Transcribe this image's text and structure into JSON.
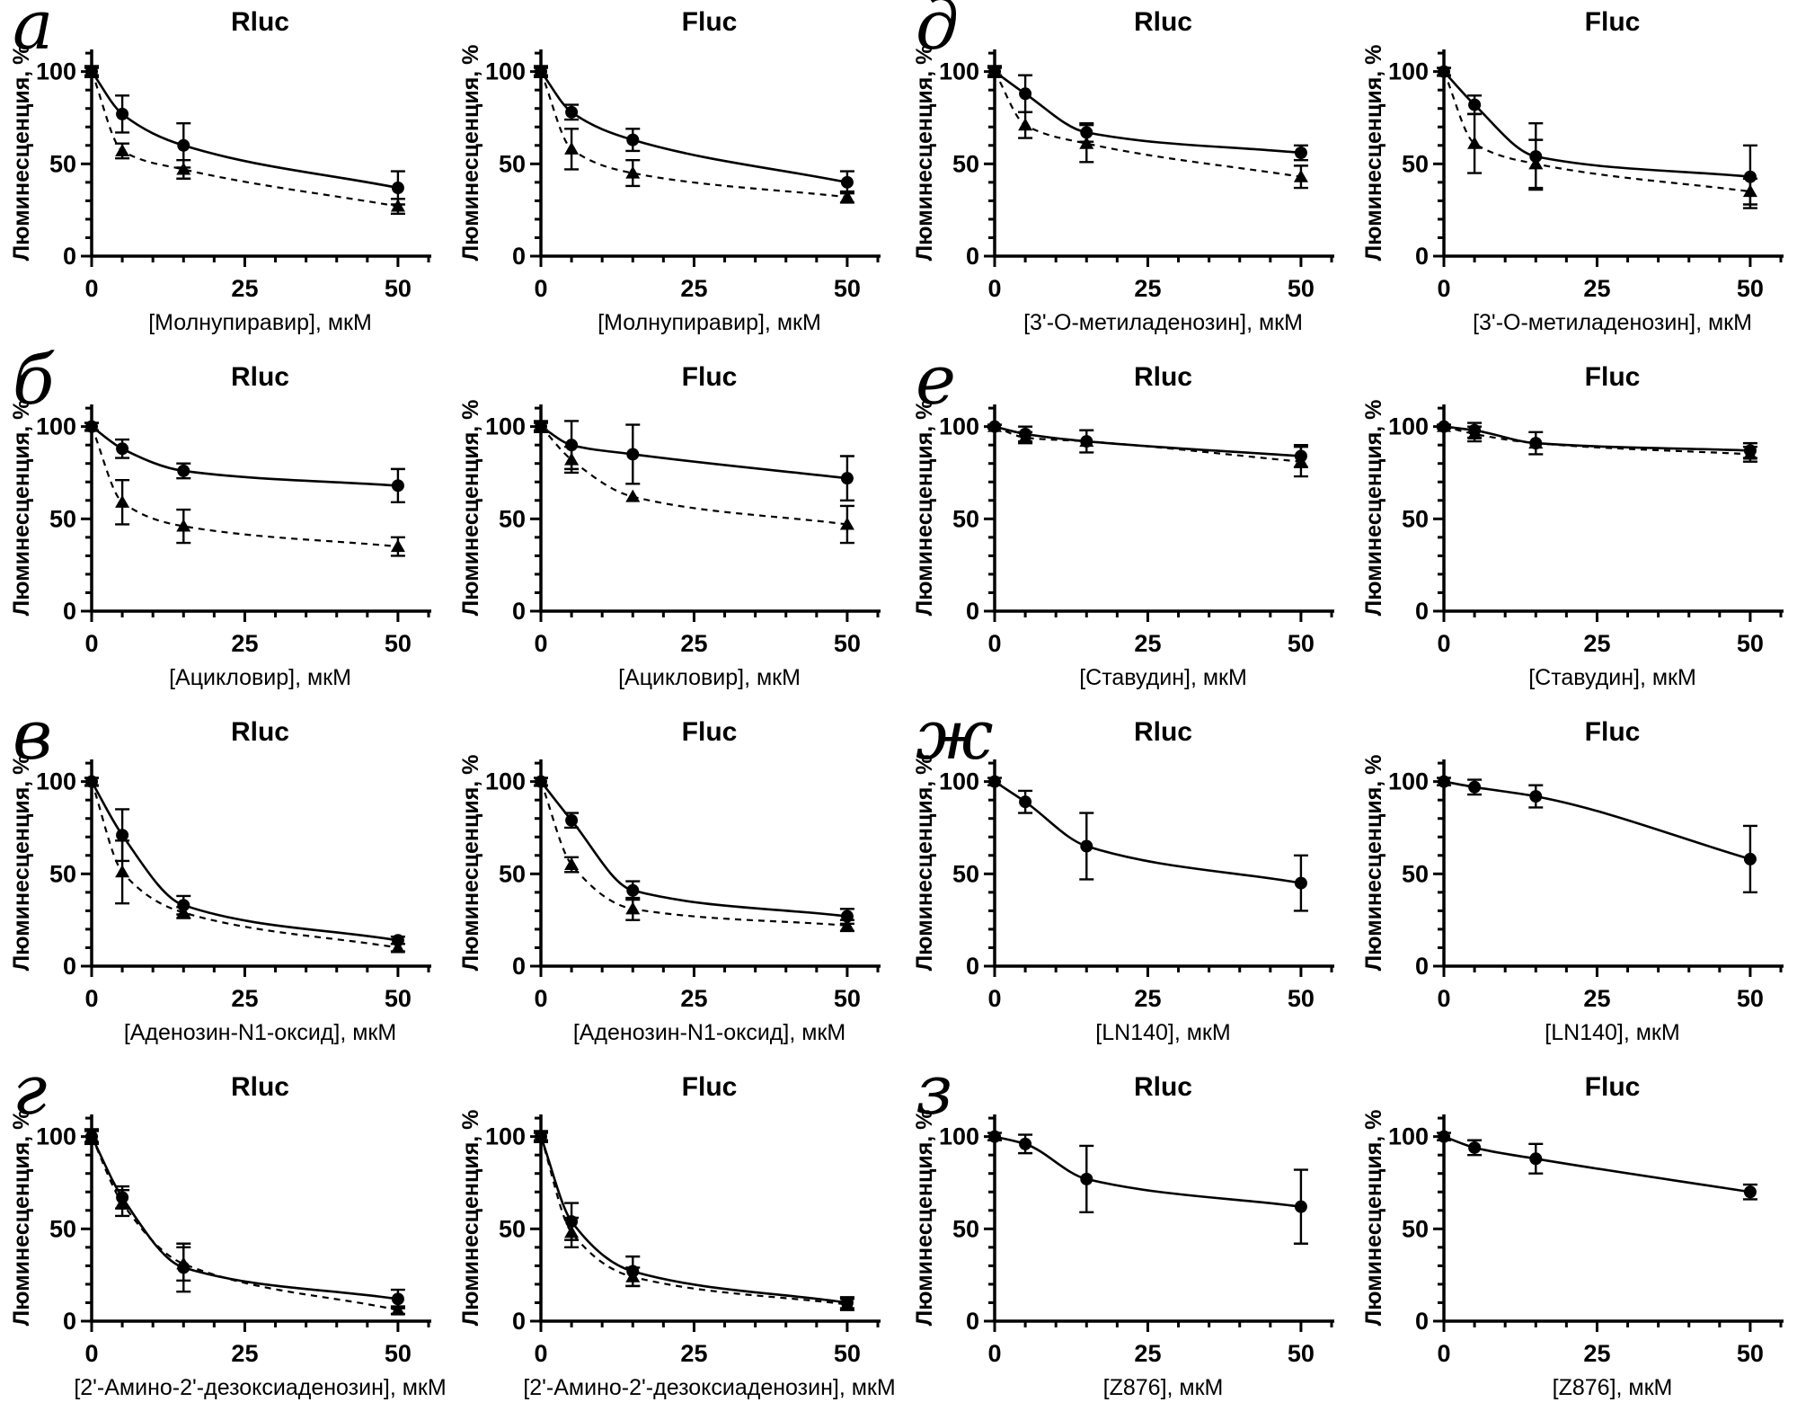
{
  "figure": {
    "background": "#ffffff",
    "foreground": "#000000",
    "description": "Dose-response luminescence curves, 8 panels each with Rluc and Fluc charts"
  },
  "axes": {
    "ylabel": "Люминесценция, %",
    "y_ticks": [
      0,
      50,
      100
    ],
    "y_minor_step": 10,
    "x_ticks": [
      0,
      25,
      50
    ],
    "x_minor_step": 5,
    "xlim": [
      0,
      55
    ],
    "ylim": [
      0,
      112
    ],
    "grid": false,
    "legend": "none"
  },
  "chart_data": [
    {
      "label": "а",
      "xlabel": "[Молнупиравир], мкМ",
      "type": "scatter-line",
      "charts": [
        {
          "title": "Rluc",
          "series": [
            {
              "name": "circles-solid",
              "marker": "circle",
              "line": "solid",
              "x": [
                0,
                5,
                15,
                50
              ],
              "y": [
                100,
                77,
                60,
                37
              ],
              "err": [
                3,
                10,
                12,
                9
              ]
            },
            {
              "name": "triangles-dashed",
              "marker": "triangle",
              "line": "dashed",
              "x": [
                0,
                5,
                15,
                50
              ],
              "y": [
                100,
                57,
                47,
                27
              ],
              "err": [
                2,
                4,
                5,
                4
              ]
            }
          ]
        },
        {
          "title": "Fluc",
          "series": [
            {
              "name": "circles-solid",
              "marker": "circle",
              "line": "solid",
              "x": [
                0,
                5,
                15,
                50
              ],
              "y": [
                100,
                78,
                63,
                40
              ],
              "err": [
                3,
                4,
                6,
                6
              ]
            },
            {
              "name": "triangles-dashed",
              "marker": "triangle",
              "line": "dashed",
              "x": [
                0,
                5,
                15,
                50
              ],
              "y": [
                100,
                58,
                45,
                32
              ],
              "err": [
                2,
                11,
                7,
                3
              ]
            }
          ]
        }
      ]
    },
    {
      "label": "б",
      "xlabel": "[Ацикловир], мкМ",
      "type": "scatter-line",
      "charts": [
        {
          "title": "Rluc",
          "series": [
            {
              "name": "circles-solid",
              "marker": "circle",
              "line": "solid",
              "x": [
                0,
                5,
                15,
                50
              ],
              "y": [
                100,
                88,
                76,
                68
              ],
              "err": [
                2,
                5,
                4,
                9
              ]
            },
            {
              "name": "triangles-dashed",
              "marker": "triangle",
              "line": "dashed",
              "x": [
                0,
                5,
                15,
                50
              ],
              "y": [
                100,
                59,
                46,
                35
              ],
              "err": [
                2,
                12,
                9,
                5
              ]
            }
          ]
        },
        {
          "title": "Fluc",
          "series": [
            {
              "name": "circles-solid",
              "marker": "circle",
              "line": "solid",
              "x": [
                0,
                5,
                15,
                50
              ],
              "y": [
                100,
                90,
                85,
                72
              ],
              "err": [
                3,
                13,
                16,
                12
              ]
            },
            {
              "name": "triangles-dashed",
              "marker": "triangle",
              "line": "dashed",
              "x": [
                0,
                5,
                15,
                50
              ],
              "y": [
                100,
                82,
                62,
                47
              ],
              "err": [
                2,
                7,
                0,
                10
              ]
            }
          ]
        }
      ]
    },
    {
      "label": "в",
      "xlabel": "[Аденозин-N1-оксид], мкМ",
      "type": "scatter-line",
      "charts": [
        {
          "title": "Rluc",
          "series": [
            {
              "name": "circles-solid",
              "marker": "circle",
              "line": "solid",
              "x": [
                0,
                5,
                15,
                50
              ],
              "y": [
                100,
                71,
                33,
                14
              ],
              "err": [
                2,
                14,
                5,
                2
              ]
            },
            {
              "name": "triangles-dashed",
              "marker": "triangle",
              "line": "dashed",
              "x": [
                0,
                5,
                15,
                50
              ],
              "y": [
                100,
                51,
                29,
                10
              ],
              "err": [
                2,
                17,
                3,
                2
              ]
            }
          ]
        },
        {
          "title": "Fluc",
          "series": [
            {
              "name": "circles-solid",
              "marker": "circle",
              "line": "solid",
              "x": [
                0,
                5,
                15,
                50
              ],
              "y": [
                100,
                79,
                41,
                27
              ],
              "err": [
                2,
                4,
                5,
                4
              ]
            },
            {
              "name": "triangles-dashed",
              "marker": "triangle",
              "line": "dashed",
              "x": [
                0,
                5,
                15,
                50
              ],
              "y": [
                100,
                55,
                31,
                22
              ],
              "err": [
                2,
                4,
                6,
                3
              ]
            }
          ]
        }
      ]
    },
    {
      "label": "г",
      "xlabel": "[2'-Амино-2'-дезоксиаденозин], мкМ",
      "type": "scatter-line",
      "charts": [
        {
          "title": "Rluc",
          "series": [
            {
              "name": "circles-solid",
              "marker": "circle",
              "line": "solid",
              "x": [
                0,
                5,
                15,
                50
              ],
              "y": [
                100,
                67,
                29,
                12
              ],
              "err": [
                4,
                6,
                13,
                5
              ]
            },
            {
              "name": "triangles-dashed",
              "marker": "triangle",
              "line": "dashed",
              "x": [
                0,
                5,
                15,
                50
              ],
              "y": [
                100,
                64,
                31,
                6
              ],
              "err": [
                3,
                7,
                9,
                2
              ]
            }
          ]
        },
        {
          "title": "Fluc",
          "series": [
            {
              "name": "circles-solid",
              "marker": "circle",
              "line": "solid",
              "x": [
                0,
                5,
                15,
                50
              ],
              "y": [
                100,
                54,
                27,
                10
              ],
              "err": [
                3,
                10,
                8,
                3
              ]
            },
            {
              "name": "triangles-dashed",
              "marker": "triangle",
              "line": "dashed",
              "x": [
                0,
                5,
                15,
                50
              ],
              "y": [
                100,
                48,
                24,
                9
              ],
              "err": [
                2,
                8,
                5,
                3
              ]
            }
          ]
        }
      ]
    },
    {
      "label": "д",
      "xlabel": "[3'-O-метиладенозин], мкМ",
      "type": "scatter-line",
      "charts": [
        {
          "title": "Rluc",
          "series": [
            {
              "name": "circles-solid",
              "marker": "circle",
              "line": "solid",
              "x": [
                0,
                5,
                15,
                50
              ],
              "y": [
                100,
                88,
                67,
                56
              ],
              "err": [
                3,
                10,
                5,
                4
              ]
            },
            {
              "name": "triangles-dashed",
              "marker": "triangle",
              "line": "dashed",
              "x": [
                0,
                5,
                15,
                50
              ],
              "y": [
                100,
                71,
                61,
                43
              ],
              "err": [
                2,
                7,
                10,
                6
              ]
            }
          ]
        },
        {
          "title": "Fluc",
          "series": [
            {
              "name": "circles-solid",
              "marker": "circle",
              "line": "solid",
              "x": [
                0,
                5,
                15,
                50
              ],
              "y": [
                100,
                82,
                54,
                43
              ],
              "err": [
                2,
                5,
                18,
                17
              ]
            },
            {
              "name": "triangles-dashed",
              "marker": "triangle",
              "line": "dashed",
              "x": [
                0,
                5,
                15,
                50
              ],
              "y": [
                100,
                61,
                50,
                35
              ],
              "err": [
                2,
                16,
                13,
                7
              ]
            }
          ]
        }
      ]
    },
    {
      "label": "е",
      "xlabel": "[Ставудин], мкМ",
      "type": "scatter-line",
      "charts": [
        {
          "title": "Rluc",
          "series": [
            {
              "name": "circles-solid",
              "marker": "circle",
              "line": "solid",
              "x": [
                0,
                5,
                15,
                50
              ],
              "y": [
                100,
                96,
                92,
                84
              ],
              "err": [
                1,
                4,
                6,
                6
              ]
            },
            {
              "name": "triangles-dashed",
              "marker": "triangle",
              "line": "dashed",
              "x": [
                0,
                5,
                15,
                50
              ],
              "y": [
                100,
                94,
                92,
                81
              ],
              "err": [
                1,
                3,
                0,
                8
              ]
            }
          ]
        },
        {
          "title": "Fluc",
          "series": [
            {
              "name": "circles-solid",
              "marker": "circle",
              "line": "solid",
              "x": [
                0,
                5,
                15,
                50
              ],
              "y": [
                100,
                98,
                91,
                87
              ],
              "err": [
                1,
                4,
                6,
                4
              ]
            },
            {
              "name": "triangles-dashed",
              "marker": "triangle",
              "line": "dashed",
              "x": [
                0,
                5,
                15,
                50
              ],
              "y": [
                100,
                96,
                91,
                85
              ],
              "err": [
                1,
                4,
                0,
                4
              ]
            }
          ]
        }
      ]
    },
    {
      "label": "ж",
      "xlabel": "[LN140], мкМ",
      "type": "scatter-line",
      "charts": [
        {
          "title": "Rluc",
          "series": [
            {
              "name": "circles-solid",
              "marker": "circle",
              "line": "solid",
              "x": [
                0,
                5,
                15,
                50
              ],
              "y": [
                100,
                89,
                65,
                45
              ],
              "err": [
                2,
                6,
                18,
                15
              ]
            }
          ]
        },
        {
          "title": "Fluc",
          "series": [
            {
              "name": "circles-solid",
              "marker": "circle",
              "line": "solid",
              "x": [
                0,
                5,
                15,
                50
              ],
              "y": [
                100,
                97,
                92,
                58
              ],
              "err": [
                2,
                4,
                6,
                18
              ]
            }
          ]
        }
      ]
    },
    {
      "label": "з",
      "xlabel": "[Z876], мкМ",
      "type": "scatter-line",
      "charts": [
        {
          "title": "Rluc",
          "series": [
            {
              "name": "circles-solid",
              "marker": "circle",
              "line": "solid",
              "x": [
                0,
                5,
                15,
                50
              ],
              "y": [
                100,
                96,
                77,
                62
              ],
              "err": [
                2,
                5,
                18,
                20
              ]
            }
          ]
        },
        {
          "title": "Fluc",
          "series": [
            {
              "name": "circles-solid",
              "marker": "circle",
              "line": "solid",
              "x": [
                0,
                5,
                15,
                50
              ],
              "y": [
                100,
                94,
                88,
                70
              ],
              "err": [
                2,
                4,
                8,
                4
              ]
            }
          ]
        }
      ]
    }
  ]
}
